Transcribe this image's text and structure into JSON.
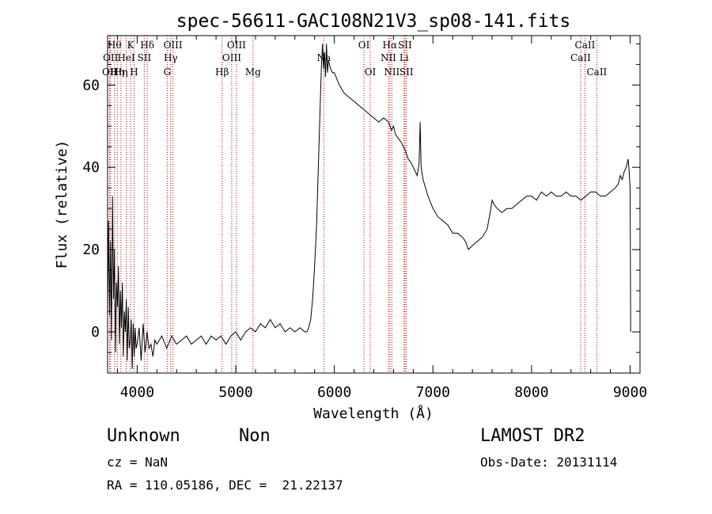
{
  "footer": {
    "object_class": "Unknown",
    "subclass": "Non",
    "redshift": "cz = NaN",
    "coords": "RA = 110.05186, DEC =  21.22137",
    "survey": "LAMOST DR2",
    "obs_date": "Obs-Date: 20131114"
  },
  "chart_data": {
    "type": "line",
    "title": "spec-56611-GAC108N21V3_sp08-141.fits",
    "xlabel": "Wavelength (Å)",
    "ylabel": "Flux (relative)",
    "xlim": [
      3700,
      9100
    ],
    "ylim": [
      -10,
      72
    ],
    "xticks": [
      4000,
      5000,
      6000,
      7000,
      8000,
      9000
    ],
    "yticks": [
      0,
      20,
      40,
      60
    ],
    "grid": false,
    "line_color": "#000000",
    "marker_color": "#c00000",
    "series": [
      {
        "x": [
          3700,
          3710,
          3720,
          3730,
          3740,
          3750,
          3760,
          3770,
          3780,
          3790,
          3800,
          3810,
          3820,
          3830,
          3840,
          3850,
          3860,
          3870,
          3880,
          3890,
          3900,
          3910,
          3920,
          3930,
          3940,
          3950,
          3960,
          3970,
          3980,
          3990,
          4000,
          4020,
          4040,
          4060,
          4080,
          4100,
          4120,
          4140,
          4160,
          4180,
          4200,
          4250,
          4300,
          4350,
          4400,
          4450,
          4500,
          4550,
          4600,
          4650,
          4700,
          4750,
          4800,
          4850,
          4900,
          4950,
          5000,
          5050,
          5100,
          5150,
          5200,
          5250,
          5300,
          5350,
          5400,
          5450,
          5500,
          5550,
          5600,
          5650,
          5700,
          5720,
          5740,
          5760,
          5780,
          5800,
          5820,
          5840,
          5860,
          5870,
          5880,
          5890,
          5900,
          5910,
          5920,
          5930,
          5940,
          5960,
          5980,
          6000,
          6050,
          6100,
          6150,
          6200,
          6250,
          6300,
          6350,
          6400,
          6450,
          6500,
          6550,
          6580,
          6600,
          6620,
          6650,
          6680,
          6700,
          6720,
          6750,
          6780,
          6800,
          6820,
          6840,
          6860,
          6870,
          6880,
          6900,
          6950,
          7000,
          7050,
          7100,
          7150,
          7200,
          7250,
          7300,
          7330,
          7360,
          7400,
          7450,
          7500,
          7550,
          7580,
          7600,
          7620,
          7650,
          7700,
          7750,
          7800,
          7850,
          7900,
          7950,
          8000,
          8050,
          8100,
          8150,
          8200,
          8250,
          8300,
          8350,
          8400,
          8450,
          8500,
          8550,
          8600,
          8650,
          8700,
          8750,
          8800,
          8850,
          8880,
          8900,
          8920,
          8940,
          8960,
          8980,
          8990,
          9000,
          9005
        ],
        "y": [
          5,
          27,
          4,
          22,
          -2,
          33,
          8,
          20,
          -5,
          12,
          6,
          16,
          -3,
          10,
          1,
          12,
          -6,
          5,
          0,
          8,
          -7,
          6,
          -4,
          -2,
          3,
          -9,
          2,
          -6,
          1,
          -4,
          -3,
          1,
          -7,
          2,
          -5,
          0,
          -4,
          -3,
          -6,
          -2,
          -3,
          -1,
          -4,
          -1,
          -3,
          -2,
          -1,
          -3,
          -2,
          -1,
          -3,
          -1,
          -2,
          -1,
          -3,
          -1,
          0,
          -2,
          0,
          1,
          0,
          2,
          1,
          3,
          1,
          2,
          0,
          1,
          0,
          1,
          0,
          0,
          1,
          3,
          8,
          16,
          26,
          42,
          58,
          65,
          70,
          64,
          68,
          62,
          70,
          63,
          66,
          64,
          63,
          63,
          60,
          58,
          57,
          56,
          55,
          54,
          53,
          52,
          51,
          52,
          51,
          49,
          50,
          48,
          47,
          46,
          45,
          44,
          42,
          41,
          40,
          39,
          38,
          41,
          51,
          40,
          37,
          33,
          30,
          28,
          27,
          26,
          24,
          24,
          23,
          22,
          20,
          21,
          22,
          23,
          25,
          29,
          32,
          31,
          30,
          29,
          30,
          30,
          31,
          32,
          33,
          33,
          32,
          34,
          33,
          34,
          33,
          33,
          34,
          33,
          33,
          32,
          33,
          34,
          34,
          33,
          33,
          34,
          35,
          36,
          38,
          37,
          39,
          40,
          42,
          39,
          35,
          0
        ]
      }
    ],
    "lines": [
      {
        "x": 3721,
        "label": "OII",
        "row": 2
      },
      {
        "x": 3730,
        "label": "OII",
        "row": 1
      },
      {
        "x": 3770,
        "label": "Hθ",
        "row": 0
      },
      {
        "x": 3798,
        "label": "Hη",
        "row": 2
      },
      {
        "x": 3835,
        "label": "Hη",
        "row": 2
      },
      {
        "x": 3889,
        "label": "HeI",
        "row": 1
      },
      {
        "x": 3934,
        "label": "K",
        "row": 0
      },
      {
        "x": 3969,
        "label": "H",
        "row": 2
      },
      {
        "x": 4072,
        "label": "SII",
        "row": 1
      },
      {
        "x": 4102,
        "label": "Hδ",
        "row": 0
      },
      {
        "x": 4305,
        "label": "G",
        "row": 2
      },
      {
        "x": 4340,
        "label": "Hγ",
        "row": 1
      },
      {
        "x": 4363,
        "label": "OIII",
        "row": 0
      },
      {
        "x": 4861,
        "label": "Hβ",
        "row": 2
      },
      {
        "x": 4959,
        "label": "OIII",
        "row": 1
      },
      {
        "x": 5007,
        "label": "OIII",
        "row": 0
      },
      {
        "x": 5175,
        "label": "Mg",
        "row": 2
      },
      {
        "x": 5893,
        "label": "Na",
        "row": 1
      },
      {
        "x": 6300,
        "label": "OI",
        "row": 0
      },
      {
        "x": 6364,
        "label": "OI",
        "row": 2
      },
      {
        "x": 6548,
        "label": "NII",
        "row": 1
      },
      {
        "x": 6563,
        "label": "Hα",
        "row": 0
      },
      {
        "x": 6583,
        "label": "NII",
        "row": 2
      },
      {
        "x": 6707,
        "label": "Li",
        "row": 1
      },
      {
        "x": 6716,
        "label": "SII",
        "row": 0
      },
      {
        "x": 6731,
        "label": "SII",
        "row": 2
      },
      {
        "x": 8498,
        "label": "CaII",
        "row": 1
      },
      {
        "x": 8542,
        "label": "CaII",
        "row": 0
      },
      {
        "x": 8662,
        "label": "CaII",
        "row": 2
      }
    ]
  }
}
